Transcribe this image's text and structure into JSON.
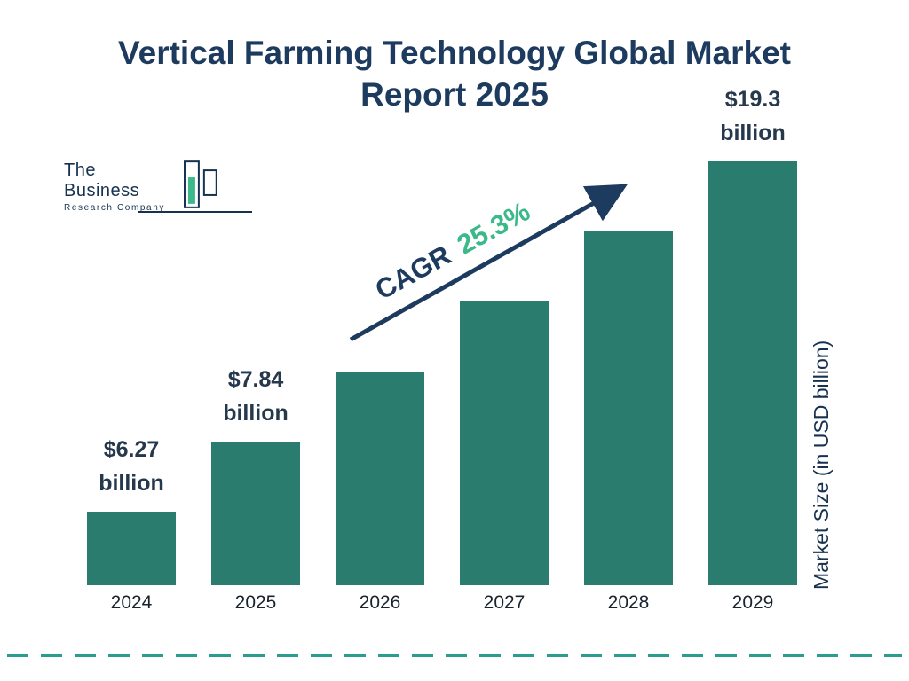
{
  "title": "Vertical Farming Technology Global Market Report 2025",
  "logo": {
    "line1": "The Business",
    "line2": "Research Company"
  },
  "chart_data": {
    "type": "bar",
    "title": "Vertical Farming Technology Global Market Report 2025",
    "categories": [
      "2024",
      "2025",
      "2026",
      "2027",
      "2028",
      "2029"
    ],
    "values": [
      6.27,
      7.84,
      9.82,
      12.31,
      15.42,
      19.3
    ],
    "unit": "USD billion",
    "bar_labels": [
      [
        "$6.27",
        "billion"
      ],
      [
        "$7.84",
        "billion"
      ],
      null,
      null,
      null,
      [
        "$19.3",
        "billion"
      ]
    ],
    "cagr_label": "CAGR",
    "cagr_value": "25.3%",
    "ylabel": "Market Size (in USD billion)",
    "xlabel": "",
    "legend": "none",
    "grid": "off",
    "bar_color": "#2a7d6e",
    "accent_green": "#3cb98a",
    "navy": "#1d3a5f",
    "dash_line_color": "#2a9d8f"
  }
}
